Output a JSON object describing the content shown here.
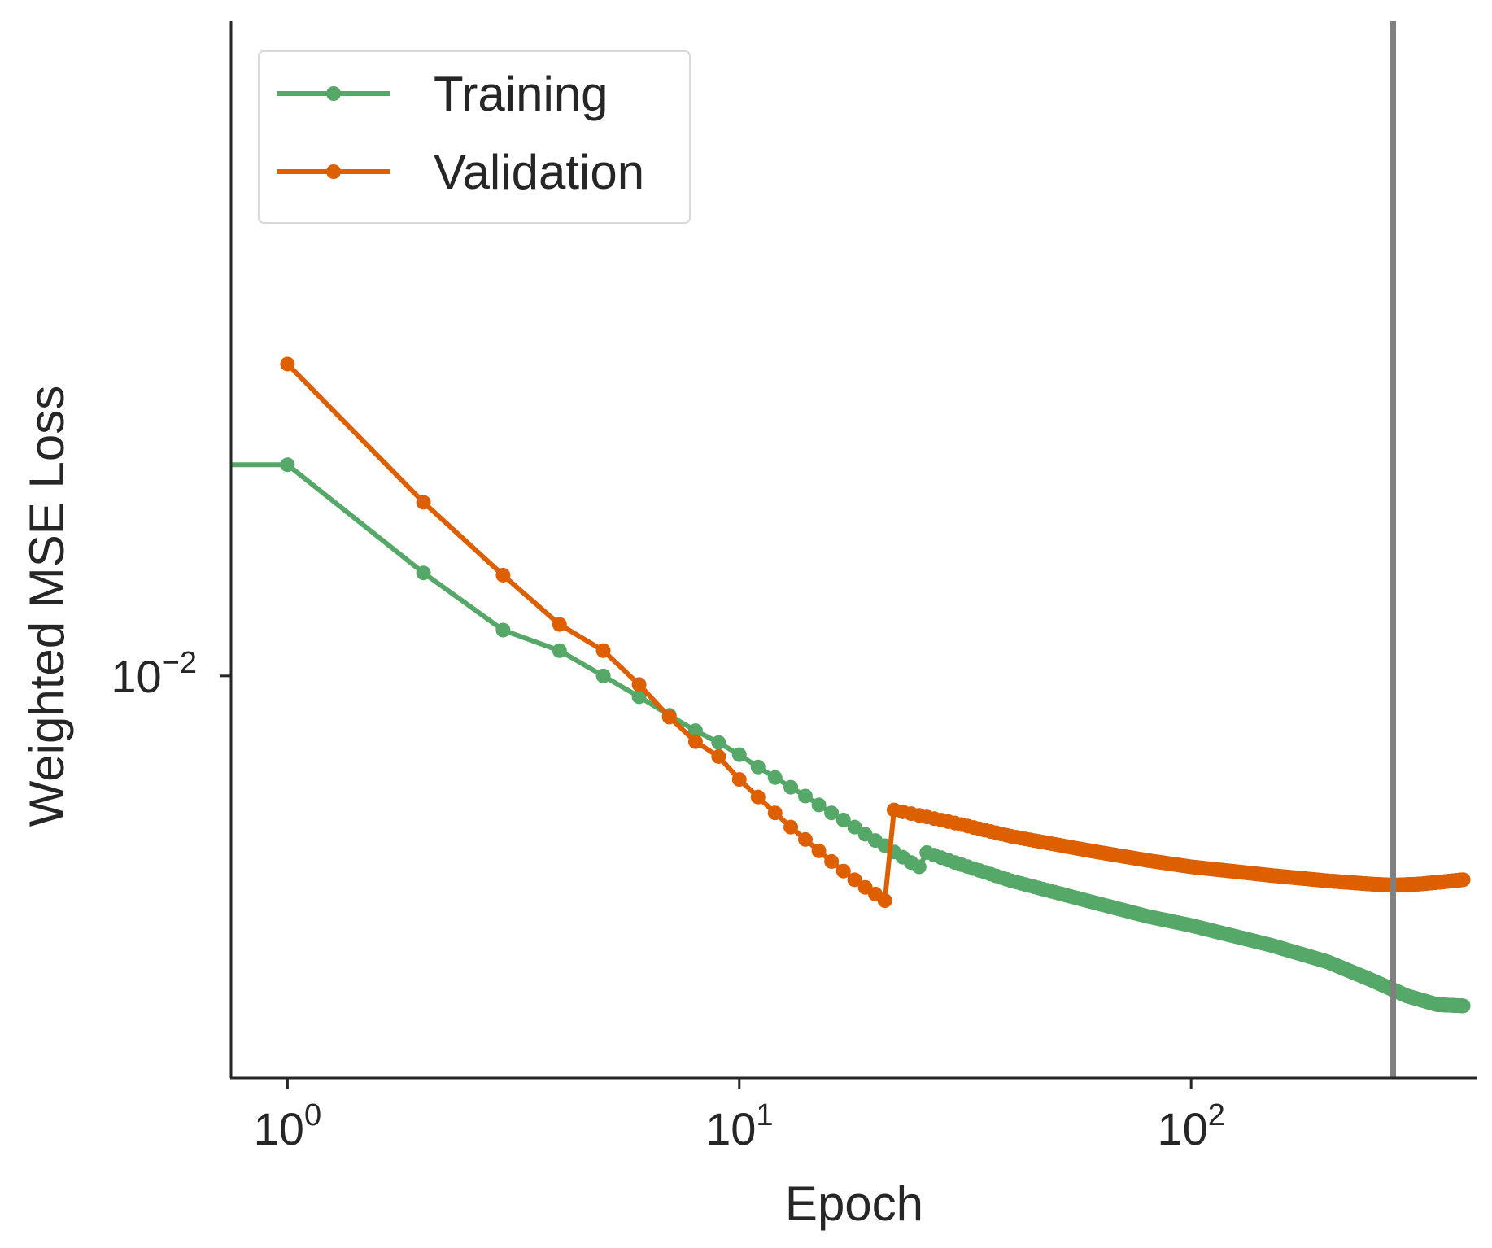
{
  "chart_data": {
    "type": "line",
    "xlabel": "Epoch",
    "ylabel": "Weighted MSE Loss",
    "xscale": "log",
    "yscale": "log",
    "xlim": [
      0.75,
      430
    ],
    "ylim": [
      0.00625,
      0.0215
    ],
    "grid": false,
    "legend": {
      "position": "top-left"
    },
    "x_ticks": [
      {
        "value": 1,
        "base": "10",
        "exp": "0"
      },
      {
        "value": 10,
        "base": "10",
        "exp": "1"
      },
      {
        "value": 100,
        "base": "10",
        "exp": "2"
      }
    ],
    "y_ticks": [
      {
        "value": 0.01,
        "base": "10",
        "exp": "−2"
      }
    ],
    "vline": {
      "x": 280,
      "color": "#808080"
    },
    "series": [
      {
        "name": "Training",
        "color": "#55A868",
        "x_start": 0,
        "x_end": 400,
        "values": [
          0.0128,
          0.0128,
          0.01128,
          0.01055,
          0.0103,
          0.01,
          0.00976,
          0.00955,
          0.00938,
          0.00925,
          0.00912,
          0.00899,
          0.00888,
          0.00878,
          0.00869,
          0.0086,
          0.00852,
          0.00845,
          0.00838,
          0.00831,
          0.00825,
          0.0082,
          0.00814,
          0.00809,
          0.00804,
          0.008
        ],
        "anchors": [
          [
            20,
            0.00831
          ],
          [
            30,
            0.00804
          ],
          [
            40,
            0.00787
          ],
          [
            60,
            0.00768
          ],
          [
            80,
            0.00755
          ],
          [
            100,
            0.00747
          ],
          [
            150,
            0.0073
          ],
          [
            200,
            0.00716
          ],
          [
            250,
            0.00701
          ],
          [
            300,
            0.00688
          ],
          [
            350,
            0.00681
          ],
          [
            400,
            0.0068
          ]
        ]
      },
      {
        "name": "Validation",
        "color": "#DD5F00",
        "x_start": 1,
        "x_end": 400,
        "values": [
          0.0144,
          0.01225,
          0.01125,
          0.01062,
          0.0103,
          0.0099,
          0.00953,
          0.00926,
          0.0091,
          0.00886,
          0.00868,
          0.00852,
          0.00838,
          0.00826,
          0.00815,
          0.00805,
          0.00796,
          0.00788,
          0.00781,
          0.00775,
          0.00769
        ],
        "anchors": [
          [
            20,
            0.00859
          ],
          [
            30,
            0.00842
          ],
          [
            40,
            0.00829
          ],
          [
            60,
            0.00815
          ],
          [
            80,
            0.00806
          ],
          [
            100,
            0.008
          ],
          [
            150,
            0.00792
          ],
          [
            200,
            0.00787
          ],
          [
            250,
            0.00784
          ],
          [
            280,
            0.00783
          ],
          [
            320,
            0.00784
          ],
          [
            360,
            0.00786
          ],
          [
            400,
            0.00788
          ]
        ]
      }
    ]
  }
}
